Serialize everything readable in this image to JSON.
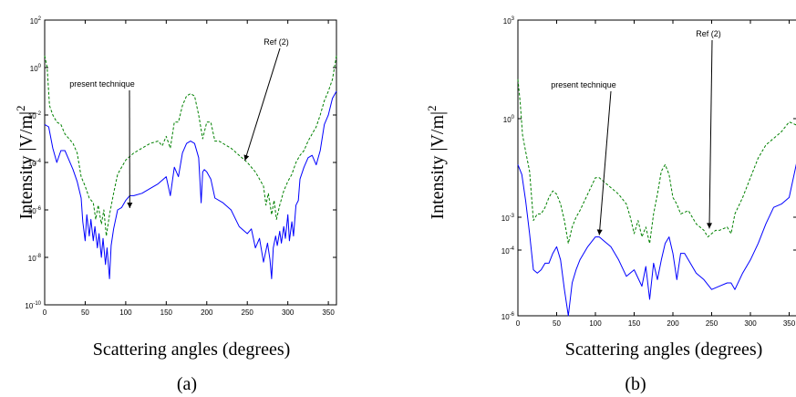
{
  "chart_data": [
    {
      "type": "line",
      "panel_label": "(a)",
      "xlabel": "Scattering angles (degrees)",
      "ylabel": "Intensity |V/m|",
      "ylabel_exponent": "2",
      "xlim": [
        0,
        360
      ],
      "ylim_log10": [
        -10,
        2
      ],
      "yscale": "log",
      "x_ticks": [
        "0",
        "50",
        "100",
        "150",
        "200",
        "250",
        "300",
        "350"
      ],
      "y_ticks": [
        {
          "base": "10",
          "exp": "2"
        },
        {
          "base": "10",
          "exp": "0"
        },
        {
          "base": "10",
          "exp": "-2"
        },
        {
          "base": "10",
          "exp": "-4"
        },
        {
          "base": "10",
          "exp": "-6"
        },
        {
          "base": "10",
          "exp": "-8"
        },
        {
          "base": "10",
          "exp": "-10"
        }
      ],
      "series": [
        {
          "name": "present technique",
          "color": "#0000ff",
          "style": "solid",
          "x": [
            0,
            5,
            10,
            15,
            20,
            25,
            30,
            35,
            40,
            45,
            47,
            50,
            52,
            55,
            57,
            60,
            62,
            65,
            67,
            70,
            72,
            75,
            77,
            80,
            82,
            85,
            90,
            95,
            100,
            105,
            110,
            120,
            130,
            140,
            150,
            155,
            160,
            165,
            170,
            175,
            180,
            185,
            190,
            193,
            195,
            197,
            200,
            205,
            210,
            220,
            230,
            240,
            250,
            255,
            260,
            265,
            270,
            275,
            278,
            280,
            282,
            285,
            287,
            290,
            292,
            295,
            297,
            300,
            302,
            305,
            307,
            310,
            313,
            315,
            320,
            325,
            330,
            335,
            340,
            345,
            350,
            355,
            360
          ],
          "y": [
            -2.4,
            -2.5,
            -3.4,
            -4.0,
            -3.5,
            -3.5,
            -3.9,
            -4.3,
            -4.8,
            -5.5,
            -6.5,
            -7.3,
            -6.2,
            -7.1,
            -6.4,
            -7.3,
            -6.7,
            -7.6,
            -7.0,
            -8.0,
            -7.2,
            -8.3,
            -7.6,
            -8.9,
            -7.5,
            -6.8,
            -6.0,
            -5.9,
            -5.6,
            -5.4,
            -5.4,
            -5.3,
            -5.1,
            -4.9,
            -4.6,
            -5.4,
            -4.2,
            -4.6,
            -3.6,
            -3.2,
            -3.1,
            -3.2,
            -3.8,
            -5.7,
            -4.4,
            -4.3,
            -4.4,
            -4.7,
            -5.5,
            -5.7,
            -6.0,
            -6.7,
            -7.0,
            -6.8,
            -7.6,
            -7.2,
            -8.2,
            -7.4,
            -8.1,
            -8.9,
            -7.6,
            -7.1,
            -7.5,
            -6.9,
            -7.4,
            -6.7,
            -7.2,
            -6.2,
            -7.3,
            -6.5,
            -7.1,
            -5.8,
            -5.6,
            -4.7,
            -4.2,
            -3.8,
            -3.7,
            -4.1,
            -3.5,
            -2.4,
            -2.0,
            -1.3,
            -1.0
          ]
        },
        {
          "name": "Ref (2)",
          "color": "#008000",
          "style": "dashed",
          "x": [
            0,
            3,
            6,
            10,
            15,
            20,
            25,
            30,
            35,
            40,
            45,
            50,
            55,
            60,
            63,
            66,
            70,
            73,
            76,
            80,
            85,
            90,
            95,
            100,
            110,
            120,
            130,
            140,
            145,
            150,
            155,
            160,
            165,
            170,
            175,
            180,
            185,
            190,
            195,
            200,
            205,
            210,
            215,
            220,
            230,
            240,
            250,
            260,
            270,
            273,
            276,
            280,
            283,
            286,
            290,
            295,
            300,
            305,
            310,
            315,
            320,
            325,
            330,
            335,
            340,
            345,
            350,
            355,
            360
          ],
          "y": [
            0.5,
            0.0,
            -1.6,
            -2.0,
            -2.3,
            -2.4,
            -2.8,
            -3.0,
            -3.2,
            -3.6,
            -4.6,
            -5.0,
            -5.5,
            -5.7,
            -6.4,
            -5.8,
            -6.6,
            -6.0,
            -7.1,
            -6.2,
            -5.3,
            -4.5,
            -4.2,
            -3.9,
            -3.6,
            -3.4,
            -3.2,
            -3.1,
            -3.3,
            -2.9,
            -3.4,
            -2.3,
            -2.3,
            -1.6,
            -1.2,
            -1.1,
            -1.2,
            -2.0,
            -3.0,
            -2.3,
            -2.3,
            -3.1,
            -3.1,
            -3.2,
            -3.4,
            -3.7,
            -4.0,
            -4.4,
            -5.0,
            -5.8,
            -5.3,
            -6.2,
            -5.6,
            -6.4,
            -5.8,
            -5.2,
            -4.8,
            -4.5,
            -4.0,
            -3.7,
            -3.5,
            -3.1,
            -2.8,
            -2.5,
            -2.0,
            -1.4,
            -1.0,
            -0.5,
            0.5
          ]
        }
      ],
      "annotations": [
        {
          "text": "present technique",
          "points_to": [
            105,
            -6.0
          ]
        },
        {
          "text": "Ref (2)",
          "points_to": [
            247,
            -4.0
          ]
        }
      ]
    },
    {
      "type": "line",
      "panel_label": "(b)",
      "xlabel": "Scattering angles (degrees)",
      "ylabel": "Intensity |V/m|",
      "ylabel_exponent": "2",
      "xlim": [
        0,
        360
      ],
      "ylim_log10": [
        -6,
        3
      ],
      "yscale": "log",
      "x_ticks": [
        "0",
        "50",
        "100",
        "150",
        "200",
        "250",
        "300",
        "350"
      ],
      "y_ticks": [
        {
          "base": "10",
          "exp": "3"
        },
        {
          "base": "10",
          "exp": "0"
        },
        {
          "base": "10",
          "exp": "-3"
        },
        {
          "base": "10",
          "exp": "-4"
        },
        {
          "base": "10",
          "exp": "-6"
        }
      ],
      "series": [
        {
          "name": "present technique",
          "color": "#0000ff",
          "style": "solid",
          "x": [
            0,
            5,
            10,
            15,
            20,
            25,
            30,
            35,
            40,
            45,
            50,
            55,
            60,
            65,
            70,
            75,
            80,
            90,
            100,
            105,
            110,
            120,
            130,
            140,
            150,
            160,
            165,
            170,
            175,
            180,
            185,
            190,
            195,
            200,
            205,
            210,
            215,
            220,
            230,
            240,
            250,
            260,
            270,
            275,
            280,
            290,
            300,
            310,
            320,
            330,
            340,
            350,
            360
          ],
          "y": [
            -1.4,
            -1.7,
            -2.5,
            -3.5,
            -4.6,
            -4.7,
            -4.6,
            -4.4,
            -4.4,
            -4.1,
            -3.9,
            -4.3,
            -5.2,
            -6.0,
            -5.0,
            -4.6,
            -4.3,
            -3.9,
            -3.6,
            -3.6,
            -3.7,
            -3.9,
            -4.3,
            -4.8,
            -4.6,
            -5.1,
            -4.5,
            -5.5,
            -4.4,
            -4.9,
            -4.3,
            -3.8,
            -3.6,
            -4.1,
            -4.9,
            -4.1,
            -4.1,
            -4.3,
            -4.7,
            -4.9,
            -5.2,
            -5.1,
            -5.0,
            -5.0,
            -5.2,
            -4.7,
            -4.3,
            -3.8,
            -3.2,
            -2.7,
            -2.6,
            -2.4,
            -1.3
          ]
        },
        {
          "name": "Ref (2)",
          "color": "#008000",
          "style": "dashed",
          "x": [
            0,
            3,
            6,
            10,
            15,
            20,
            25,
            30,
            35,
            40,
            45,
            50,
            55,
            60,
            65,
            70,
            75,
            80,
            90,
            100,
            105,
            110,
            120,
            130,
            140,
            145,
            150,
            155,
            160,
            165,
            170,
            175,
            180,
            185,
            190,
            195,
            200,
            205,
            210,
            220,
            230,
            240,
            245,
            250,
            255,
            260,
            270,
            275,
            280,
            290,
            300,
            310,
            320,
            330,
            340,
            350,
            360
          ],
          "y": [
            1.2,
            0.5,
            -0.5,
            -1.0,
            -1.6,
            -3.1,
            -2.9,
            -2.9,
            -2.7,
            -2.4,
            -2.2,
            -2.3,
            -2.6,
            -3.1,
            -3.8,
            -3.3,
            -3.0,
            -2.8,
            -2.3,
            -1.8,
            -1.8,
            -1.9,
            -2.1,
            -2.3,
            -2.6,
            -3.0,
            -3.5,
            -3.1,
            -3.6,
            -3.3,
            -3.8,
            -2.9,
            -2.3,
            -1.6,
            -1.4,
            -1.7,
            -2.4,
            -2.6,
            -2.9,
            -2.8,
            -3.2,
            -3.4,
            -3.6,
            -3.5,
            -3.4,
            -3.4,
            -3.3,
            -3.5,
            -2.9,
            -2.4,
            -1.8,
            -1.2,
            -0.8,
            -0.6,
            -0.4,
            -0.1,
            -0.2
          ]
        }
      ],
      "annotations": [
        {
          "text": "present technique",
          "points_to": [
            105,
            -3.6
          ]
        },
        {
          "text": "Ref (2)",
          "points_to": [
            247,
            -3.4
          ]
        }
      ]
    }
  ]
}
